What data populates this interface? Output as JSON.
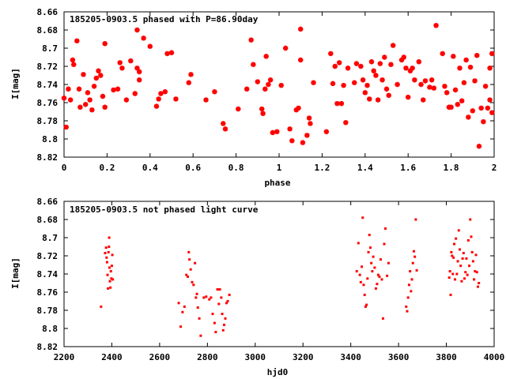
{
  "chart_data": [
    {
      "type": "scatter",
      "title": "185205-0903.5 phased with P=86.90day",
      "xlabel": "phase",
      "ylabel": "I[mag]",
      "xlim": [
        0,
        2
      ],
      "ylim": [
        8.82,
        8.66
      ],
      "y_inverted": true,
      "x_ticks": [
        "0",
        "0.2",
        "0.4",
        "0.6",
        "0.8",
        "1",
        "1.2",
        "1.4",
        "1.6",
        "1.8",
        "2"
      ],
      "y_ticks": [
        "8.66",
        "8.68",
        "8.7",
        "8.72",
        "8.74",
        "8.76",
        "8.78",
        "8.8",
        "8.82"
      ],
      "grid": false,
      "legend": "none",
      "marker": "star",
      "color": "#ff0000",
      "points": [
        [
          0.0,
          8.755
        ],
        [
          0.01,
          8.787
        ],
        [
          0.02,
          8.745
        ],
        [
          0.03,
          8.757
        ],
        [
          0.04,
          8.713
        ],
        [
          0.045,
          8.718
        ],
        [
          0.06,
          8.692
        ],
        [
          0.07,
          8.745
        ],
        [
          0.075,
          8.765
        ],
        [
          0.09,
          8.729
        ],
        [
          0.1,
          8.762
        ],
        [
          0.11,
          8.749
        ],
        [
          0.12,
          8.757
        ],
        [
          0.13,
          8.768
        ],
        [
          0.14,
          8.742
        ],
        [
          0.15,
          8.733
        ],
        [
          0.16,
          8.725
        ],
        [
          0.17,
          8.73
        ],
        [
          0.18,
          8.753
        ],
        [
          0.19,
          8.765
        ],
        [
          0.19,
          8.695
        ],
        [
          0.23,
          8.746
        ],
        [
          0.25,
          8.745
        ],
        [
          0.26,
          8.716
        ],
        [
          0.27,
          8.722
        ],
        [
          0.29,
          8.757
        ],
        [
          0.31,
          8.714
        ],
        [
          0.33,
          8.75
        ],
        [
          0.34,
          8.722
        ],
        [
          0.35,
          8.726
        ],
        [
          0.35,
          8.735
        ],
        [
          0.34,
          8.68
        ],
        [
          0.37,
          8.689
        ],
        [
          0.4,
          8.698
        ],
        [
          0.43,
          8.764
        ],
        [
          0.44,
          8.756
        ],
        [
          0.45,
          8.75
        ],
        [
          0.47,
          8.748
        ],
        [
          0.48,
          8.706
        ],
        [
          0.5,
          8.705
        ],
        [
          0.52,
          8.756
        ],
        [
          0.58,
          8.738
        ],
        [
          0.59,
          8.729
        ],
        [
          0.66,
          8.757
        ],
        [
          0.7,
          8.748
        ],
        [
          0.74,
          8.783
        ],
        [
          0.75,
          8.789
        ],
        [
          0.81,
          8.767
        ],
        [
          0.85,
          8.745
        ],
        [
          0.87,
          8.691
        ],
        [
          0.88,
          8.718
        ],
        [
          0.9,
          8.737
        ],
        [
          0.92,
          8.767
        ],
        [
          0.925,
          8.772
        ],
        [
          0.935,
          8.745
        ],
        [
          0.94,
          8.709
        ],
        [
          0.95,
          8.74
        ],
        [
          0.96,
          8.735
        ],
        [
          0.97,
          8.793
        ],
        [
          0.99,
          8.792
        ],
        [
          1.01,
          8.741
        ],
        [
          1.03,
          8.7
        ],
        [
          1.05,
          8.789
        ],
        [
          1.06,
          8.802
        ],
        [
          1.08,
          8.768
        ],
        [
          1.09,
          8.766
        ],
        [
          1.1,
          8.713
        ],
        [
          1.1,
          8.679
        ],
        [
          1.11,
          8.804
        ],
        [
          1.13,
          8.796
        ],
        [
          1.14,
          8.777
        ],
        [
          1.145,
          8.783
        ],
        [
          1.16,
          8.738
        ],
        [
          1.22,
          8.792
        ],
        [
          1.24,
          8.706
        ],
        [
          1.25,
          8.739
        ],
        [
          1.26,
          8.72
        ],
        [
          1.27,
          8.761
        ],
        [
          1.28,
          8.716
        ],
        [
          1.29,
          8.761
        ],
        [
          1.3,
          8.741
        ],
        [
          1.31,
          8.782
        ],
        [
          1.32,
          8.722
        ],
        [
          1.35,
          8.738
        ],
        [
          1.36,
          8.717
        ],
        [
          1.38,
          8.72
        ],
        [
          1.39,
          8.735
        ],
        [
          1.4,
          8.749
        ],
        [
          1.41,
          8.741
        ],
        [
          1.42,
          8.756
        ],
        [
          1.43,
          8.715
        ],
        [
          1.44,
          8.725
        ],
        [
          1.45,
          8.73
        ],
        [
          1.46,
          8.757
        ],
        [
          1.47,
          8.717
        ],
        [
          1.48,
          8.735
        ],
        [
          1.49,
          8.71
        ],
        [
          1.5,
          8.745
        ],
        [
          1.51,
          8.752
        ],
        [
          1.52,
          8.718
        ],
        [
          1.53,
          8.697
        ],
        [
          1.55,
          8.74
        ],
        [
          1.57,
          8.713
        ],
        [
          1.58,
          8.71
        ],
        [
          1.59,
          8.722
        ],
        [
          1.6,
          8.754
        ],
        [
          1.61,
          8.725
        ],
        [
          1.62,
          8.722
        ],
        [
          1.63,
          8.735
        ],
        [
          1.65,
          8.715
        ],
        [
          1.66,
          8.74
        ],
        [
          1.67,
          8.757
        ],
        [
          1.68,
          8.736
        ],
        [
          1.7,
          8.743
        ],
        [
          1.71,
          8.735
        ],
        [
          1.72,
          8.744
        ],
        [
          1.73,
          8.675
        ],
        [
          1.76,
          8.706
        ],
        [
          1.77,
          8.742
        ],
        [
          1.78,
          8.749
        ],
        [
          1.79,
          8.765
        ],
        [
          1.8,
          8.765
        ],
        [
          1.81,
          8.709
        ],
        [
          1.82,
          8.746
        ],
        [
          1.83,
          8.762
        ],
        [
          1.84,
          8.722
        ],
        [
          1.85,
          8.758
        ],
        [
          1.86,
          8.738
        ],
        [
          1.87,
          8.713
        ],
        [
          1.88,
          8.776
        ],
        [
          1.89,
          8.721
        ],
        [
          1.9,
          8.769
        ],
        [
          1.91,
          8.736
        ],
        [
          1.92,
          8.708
        ],
        [
          1.93,
          8.808
        ],
        [
          1.94,
          8.766
        ],
        [
          1.95,
          8.781
        ],
        [
          1.96,
          8.742
        ],
        [
          1.97,
          8.766
        ],
        [
          1.98,
          8.757
        ],
        [
          1.99,
          8.771
        ],
        [
          1.98,
          8.722
        ],
        [
          1.99,
          8.706
        ]
      ]
    },
    {
      "type": "scatter",
      "title": "185205-0903.5 not phased light curve",
      "xlabel": "hjd0",
      "ylabel": "I[mag]",
      "xlim": [
        2200,
        4000
      ],
      "ylim": [
        8.82,
        8.66
      ],
      "y_inverted": true,
      "x_ticks": [
        "2200",
        "2400",
        "2600",
        "2800",
        "3000",
        "3200",
        "3400",
        "3600",
        "3800",
        "4000"
      ],
      "y_ticks": [
        "8.66",
        "8.68",
        "8.7",
        "8.72",
        "8.74",
        "8.76",
        "8.78",
        "8.8",
        "8.82"
      ],
      "grid": false,
      "legend": "none",
      "marker": "dot",
      "color": "#ff0000",
      "points": [
        [
          2355,
          8.776
        ],
        [
          2372,
          8.717
        ],
        [
          2376,
          8.711
        ],
        [
          2378,
          8.722
        ],
        [
          2380,
          8.727
        ],
        [
          2382,
          8.741
        ],
        [
          2384,
          8.756
        ],
        [
          2386,
          8.716
        ],
        [
          2388,
          8.71
        ],
        [
          2389,
          8.7
        ],
        [
          2390,
          8.733
        ],
        [
          2392,
          8.748
        ],
        [
          2394,
          8.755
        ],
        [
          2396,
          8.737
        ],
        [
          2398,
          8.745
        ],
        [
          2400,
          8.731
        ],
        [
          2402,
          8.719
        ],
        [
          2404,
          8.746
        ],
        [
          2680,
          8.772
        ],
        [
          2688,
          8.798
        ],
        [
          2696,
          8.782
        ],
        [
          2704,
          8.776
        ],
        [
          2712,
          8.741
        ],
        [
          2718,
          8.743
        ],
        [
          2722,
          8.716
        ],
        [
          2725,
          8.724
        ],
        [
          2730,
          8.735
        ],
        [
          2736,
          8.749
        ],
        [
          2742,
          8.752
        ],
        [
          2748,
          8.728
        ],
        [
          2752,
          8.766
        ],
        [
          2756,
          8.762
        ],
        [
          2760,
          8.777
        ],
        [
          2766,
          8.789
        ],
        [
          2772,
          8.808
        ],
        [
          2785,
          8.766
        ],
        [
          2795,
          8.765
        ],
        [
          2808,
          8.768
        ],
        [
          2815,
          8.766
        ],
        [
          2822,
          8.784
        ],
        [
          2830,
          8.794
        ],
        [
          2835,
          8.804
        ],
        [
          2842,
          8.757
        ],
        [
          2848,
          8.773
        ],
        [
          2852,
          8.757
        ],
        [
          2858,
          8.766
        ],
        [
          2862,
          8.784
        ],
        [
          2866,
          8.802
        ],
        [
          2870,
          8.796
        ],
        [
          2875,
          8.789
        ],
        [
          2880,
          8.772
        ],
        [
          2885,
          8.77
        ],
        [
          2892,
          8.763
        ],
        [
          3425,
          8.737
        ],
        [
          3432,
          8.706
        ],
        [
          3438,
          8.741
        ],
        [
          3442,
          8.749
        ],
        [
          3446,
          8.732
        ],
        [
          3450,
          8.678
        ],
        [
          3454,
          8.752
        ],
        [
          3458,
          8.763
        ],
        [
          3462,
          8.776
        ],
        [
          3466,
          8.774
        ],
        [
          3470,
          8.745
        ],
        [
          3474,
          8.716
        ],
        [
          3478,
          8.697
        ],
        [
          3482,
          8.711
        ],
        [
          3486,
          8.728
        ],
        [
          3490,
          8.737
        ],
        [
          3494,
          8.721
        ],
        [
          3500,
          8.733
        ],
        [
          3505,
          8.756
        ],
        [
          3510,
          8.751
        ],
        [
          3515,
          8.741
        ],
        [
          3520,
          8.743
        ],
        [
          3525,
          8.724
        ],
        [
          3530,
          8.746
        ],
        [
          3535,
          8.789
        ],
        [
          3540,
          8.707
        ],
        [
          3545,
          8.69
        ],
        [
          3552,
          8.742
        ],
        [
          3558,
          8.728
        ],
        [
          3632,
          8.776
        ],
        [
          3636,
          8.781
        ],
        [
          3640,
          8.766
        ],
        [
          3644,
          8.752
        ],
        [
          3648,
          8.737
        ],
        [
          3652,
          8.759
        ],
        [
          3656,
          8.746
        ],
        [
          3660,
          8.728
        ],
        [
          3664,
          8.715
        ],
        [
          3668,
          8.721
        ],
        [
          3672,
          8.68
        ],
        [
          3676,
          8.736
        ],
        [
          3812,
          8.744
        ],
        [
          3815,
          8.737
        ],
        [
          3818,
          8.763
        ],
        [
          3821,
          8.716
        ],
        [
          3824,
          8.72
        ],
        [
          3827,
          8.74
        ],
        [
          3830,
          8.722
        ],
        [
          3833,
          8.707
        ],
        [
          3836,
          8.746
        ],
        [
          3840,
          8.701
        ],
        [
          3844,
          8.74
        ],
        [
          3848,
          8.726
        ],
        [
          3852,
          8.692
        ],
        [
          3856,
          8.713
        ],
        [
          3860,
          8.731
        ],
        [
          3864,
          8.748
        ],
        [
          3868,
          8.723
        ],
        [
          3872,
          8.717
        ],
        [
          3876,
          8.745
        ],
        [
          3880,
          8.738
        ],
        [
          3884,
          8.723
        ],
        [
          3888,
          8.741
        ],
        [
          3892,
          8.703
        ],
        [
          3896,
          8.731
        ],
        [
          3900,
          8.68
        ],
        [
          3904,
          8.699
        ],
        [
          3908,
          8.716
        ],
        [
          3912,
          8.726
        ],
        [
          3916,
          8.746
        ],
        [
          3920,
          8.737
        ],
        [
          3924,
          8.719
        ],
        [
          3928,
          8.738
        ],
        [
          3932,
          8.754
        ],
        [
          3936,
          8.75
        ]
      ]
    }
  ]
}
